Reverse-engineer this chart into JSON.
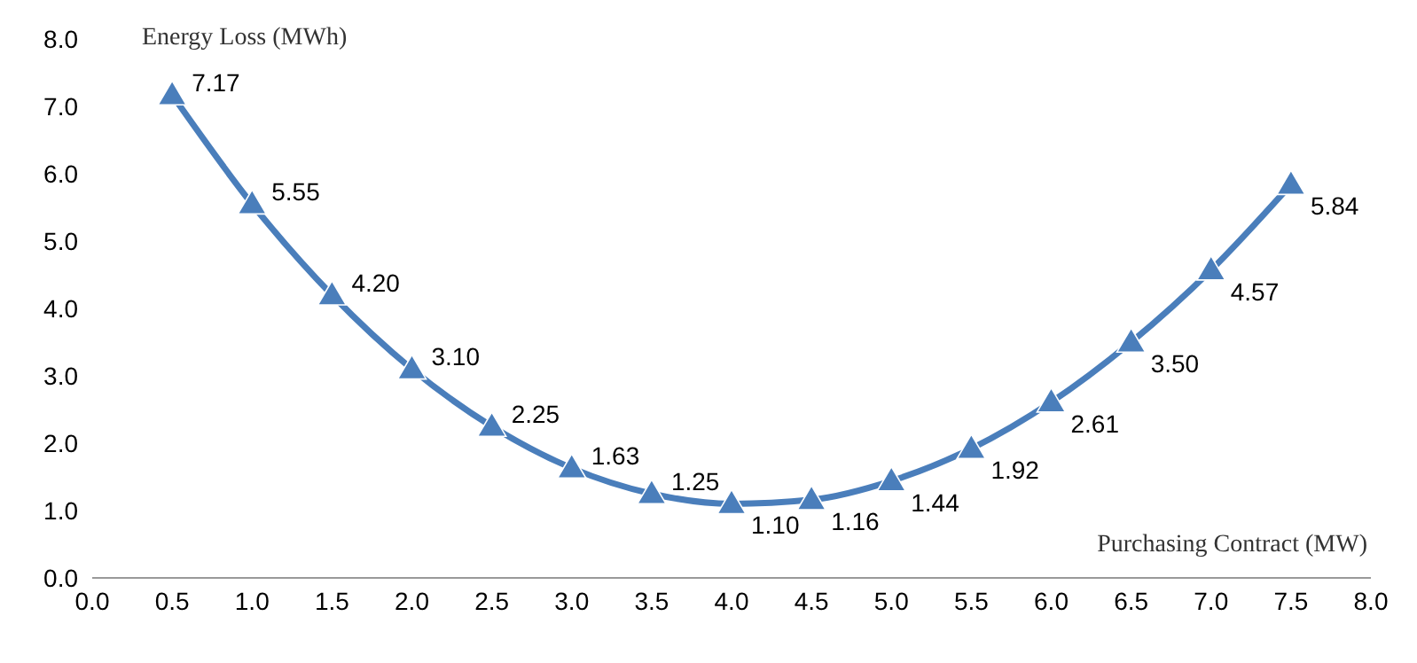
{
  "chart_data": {
    "type": "line",
    "xlabel": "Purchasing Contract (MW)",
    "ylabel": "Energy Loss (MWh)",
    "x": [
      0.5,
      1.0,
      1.5,
      2.0,
      2.5,
      3.0,
      3.5,
      4.0,
      4.5,
      5.0,
      5.5,
      6.0,
      6.5,
      7.0,
      7.5
    ],
    "series": [
      {
        "color": "#4a7ebb",
        "values": [
          7.17,
          5.55,
          4.2,
          3.1,
          2.25,
          1.63,
          1.25,
          1.1,
          1.16,
          1.44,
          1.92,
          2.61,
          3.5,
          4.57,
          5.84
        ],
        "value_labels": [
          "7.17",
          "5.55",
          "4.20",
          "3.10",
          "2.25",
          "1.63",
          "1.25",
          "1.10",
          "1.16",
          "1.44",
          "1.92",
          "2.61",
          "3.50",
          "4.57",
          "5.84"
        ]
      }
    ],
    "xlim": [
      0,
      8
    ],
    "xticks": [
      {
        "value": 0,
        "label": "0.0"
      },
      {
        "value": 0.5,
        "label": "0.5"
      },
      {
        "value": 1,
        "label": "1.0"
      },
      {
        "value": 1.5,
        "label": "1.5"
      },
      {
        "value": 2,
        "label": "2.0"
      },
      {
        "value": 2.5,
        "label": "2.5"
      },
      {
        "value": 3,
        "label": "3.0"
      },
      {
        "value": 3.5,
        "label": "3.5"
      },
      {
        "value": 4,
        "label": "4.0"
      },
      {
        "value": 4.5,
        "label": "4.5"
      },
      {
        "value": 5,
        "label": "5.0"
      },
      {
        "value": 5.5,
        "label": "5.5"
      },
      {
        "value": 6,
        "label": "6.0"
      },
      {
        "value": 6.5,
        "label": "6.5"
      },
      {
        "value": 7,
        "label": "7.0"
      },
      {
        "value": 7.5,
        "label": "7.5"
      },
      {
        "value": 8,
        "label": "8.0"
      }
    ],
    "ylim": [
      0,
      8
    ],
    "yticks": [
      {
        "value": 0,
        "label": "0.0"
      },
      {
        "value": 1,
        "label": "1.0"
      },
      {
        "value": 2,
        "label": "2.0"
      },
      {
        "value": 3,
        "label": "3.0"
      },
      {
        "value": 4,
        "label": "4.0"
      },
      {
        "value": 5,
        "label": "5.0"
      },
      {
        "value": 6,
        "label": "6.0"
      },
      {
        "value": 7,
        "label": "7.0"
      },
      {
        "value": 8,
        "label": "8.0"
      }
    ],
    "marker": "triangle",
    "line_style": "solid",
    "grid": false,
    "legend": false
  }
}
